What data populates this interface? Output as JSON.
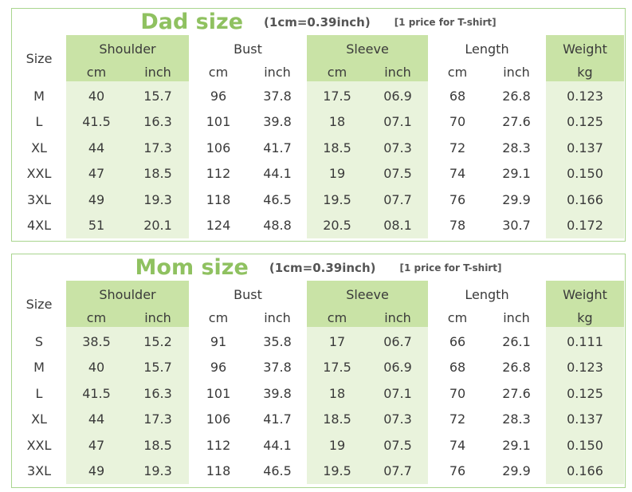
{
  "colors": {
    "border": "#a9d58e",
    "title": "#8fc160",
    "header_fill": "#c9e3a6",
    "column_fill": "#e9f3dc",
    "text": "#3a3a3a"
  },
  "tables": [
    {
      "title": "Dad size",
      "unit_note": "(1cm=0.39inch)",
      "price_note": "[1 price for T-shirt]",
      "size_header": "Size",
      "groups": [
        "Shoulder",
        "Bust",
        "Sleeve",
        "Length",
        "Weight"
      ],
      "units": [
        "cm",
        "inch",
        "cm",
        "inch",
        "cm",
        "inch",
        "cm",
        "inch",
        "kg"
      ],
      "rows": [
        [
          "M",
          "40",
          "15.7",
          "96",
          "37.8",
          "17.5",
          "06.9",
          "68",
          "26.8",
          "0.123"
        ],
        [
          "L",
          "41.5",
          "16.3",
          "101",
          "39.8",
          "18",
          "07.1",
          "70",
          "27.6",
          "0.125"
        ],
        [
          "XL",
          "44",
          "17.3",
          "106",
          "41.7",
          "18.5",
          "07.3",
          "72",
          "28.3",
          "0.137"
        ],
        [
          "XXL",
          "47",
          "18.5",
          "112",
          "44.1",
          "19",
          "07.5",
          "74",
          "29.1",
          "0.150"
        ],
        [
          "3XL",
          "49",
          "19.3",
          "118",
          "46.5",
          "19.5",
          "07.7",
          "76",
          "29.9",
          "0.166"
        ],
        [
          "4XL",
          "51",
          "20.1",
          "124",
          "48.8",
          "20.5",
          "08.1",
          "78",
          "30.7",
          "0.172"
        ]
      ]
    },
    {
      "title": "Mom size",
      "unit_note": "(1cm=0.39inch)",
      "price_note": "[1 price for T-shirt]",
      "size_header": "Size",
      "groups": [
        "Shoulder",
        "Bust",
        "Sleeve",
        "Length",
        "Weight"
      ],
      "units": [
        "cm",
        "inch",
        "cm",
        "inch",
        "cm",
        "inch",
        "cm",
        "inch",
        "kg"
      ],
      "rows": [
        [
          "S",
          "38.5",
          "15.2",
          "91",
          "35.8",
          "17",
          "06.7",
          "66",
          "26.1",
          "0.111"
        ],
        [
          "M",
          "40",
          "15.7",
          "96",
          "37.8",
          "17.5",
          "06.9",
          "68",
          "26.8",
          "0.123"
        ],
        [
          "L",
          "41.5",
          "16.3",
          "101",
          "39.8",
          "18",
          "07.1",
          "70",
          "27.6",
          "0.125"
        ],
        [
          "XL",
          "44",
          "17.3",
          "106",
          "41.7",
          "18.5",
          "07.3",
          "72",
          "28.3",
          "0.137"
        ],
        [
          "XXL",
          "47",
          "18.5",
          "112",
          "44.1",
          "19",
          "07.5",
          "74",
          "29.1",
          "0.150"
        ],
        [
          "3XL",
          "49",
          "19.3",
          "118",
          "46.5",
          "19.5",
          "07.7",
          "76",
          "29.9",
          "0.166"
        ]
      ]
    }
  ]
}
